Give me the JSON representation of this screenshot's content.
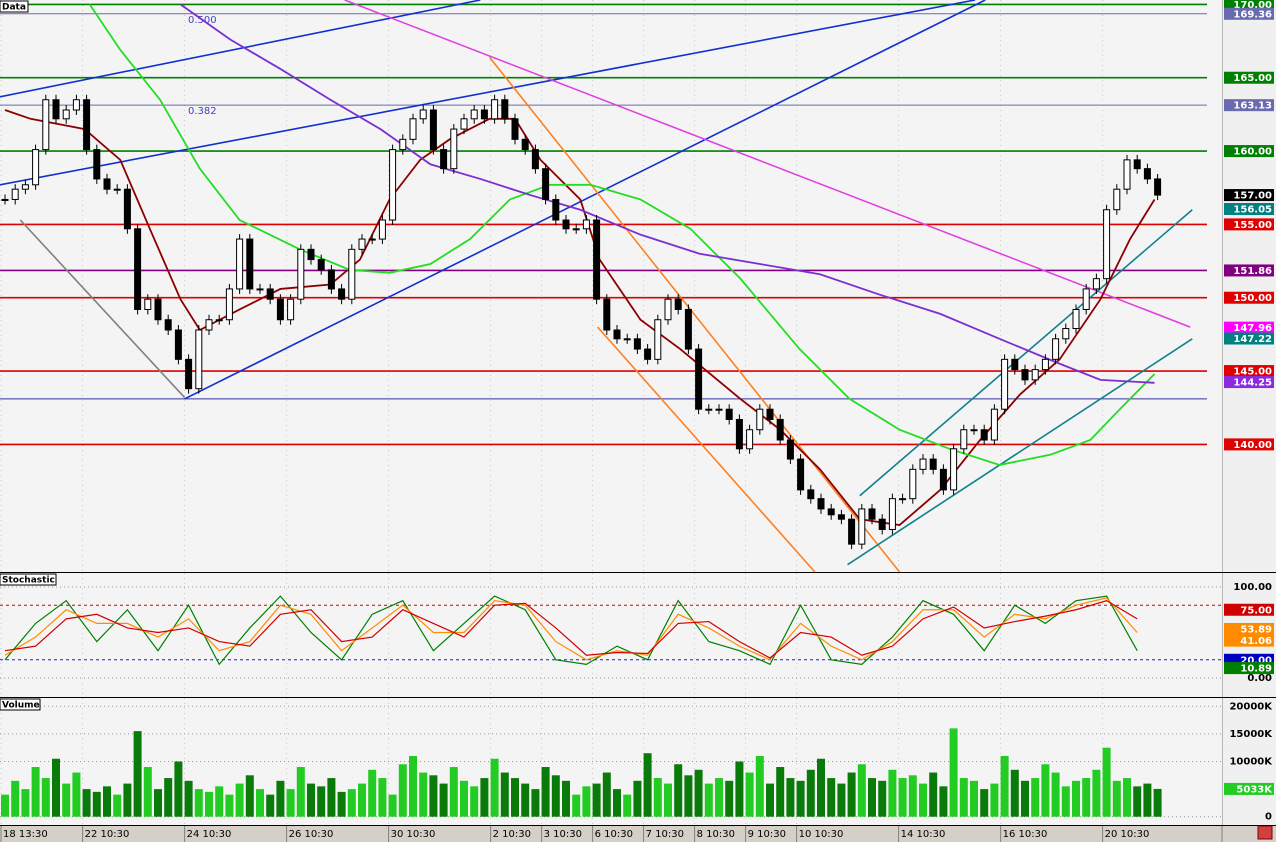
{
  "chart_data": [
    {
      "type": "candlestick",
      "title": "Data",
      "color": "#000000",
      "ylim": [
        131.3,
        170.3
      ],
      "values": [
        156.7,
        157.4,
        157.7,
        160.1,
        163.5,
        162.2,
        162.8,
        163.5,
        160.1,
        158.1,
        157.4,
        157.4,
        154.7,
        149.2,
        149.9,
        148.5,
        147.8,
        145.8,
        143.8,
        147.8,
        148.5,
        148.5,
        150.6,
        154.0,
        150.6,
        150.6,
        149.9,
        148.5,
        149.9,
        153.3,
        152.6,
        151.9,
        150.6,
        149.9,
        153.3,
        154.0,
        154.0,
        155.3,
        160.1,
        160.8,
        162.2,
        162.8,
        160.1,
        158.8,
        161.5,
        162.2,
        162.8,
        162.2,
        163.5,
        162.2,
        160.8,
        160.1,
        158.8,
        156.7,
        155.3,
        154.7,
        154.7,
        155.3,
        149.9,
        147.8,
        147.2,
        147.2,
        146.5,
        145.8,
        148.5,
        149.9,
        149.2,
        146.5,
        142.4,
        142.4,
        142.4,
        141.7,
        139.7,
        141.0,
        142.4,
        141.7,
        140.3,
        139.0,
        136.9,
        136.3,
        135.6,
        135.2,
        134.9,
        133.2,
        135.6,
        134.9,
        134.2,
        136.3,
        136.3,
        138.3,
        139.0,
        138.3,
        136.9,
        139.7,
        141.0,
        141.0,
        140.3,
        142.4,
        145.8,
        145.1,
        144.4,
        145.1,
        145.8,
        147.2,
        147.9,
        149.2,
        150.6,
        151.3,
        156.0,
        157.4,
        159.4,
        158.8,
        158.1,
        157.0
      ],
      "levels": [
        {
          "value": 170,
          "color": "#008000",
          "label": "170.00"
        },
        {
          "value": 169.36,
          "color": "#6a6ab0",
          "label": "169.36",
          "note": "0.500"
        },
        {
          "value": 165,
          "color": "#008000",
          "label": "165.00"
        },
        {
          "value": 163.13,
          "color": "#6a6ab0",
          "label": "163.13",
          "note": "0.382"
        },
        {
          "value": 160,
          "color": "#008000",
          "label": "160.00"
        },
        {
          "value": 155,
          "color": "#e00000",
          "label": "155.00"
        },
        {
          "value": 151.86,
          "color": "#800080",
          "label": "151.86"
        },
        {
          "value": 150,
          "color": "#e00000",
          "label": "150.00"
        },
        {
          "value": 145,
          "color": "#e00000",
          "label": "145.00"
        },
        {
          "value": 143.1,
          "color": "#3030a0"
        },
        {
          "value": 140,
          "color": "#e00000",
          "label": "140.00"
        }
      ],
      "markers": [
        {
          "value": 157,
          "label": "157.00",
          "color": "#000000"
        },
        {
          "value": 156.05,
          "label": "156.05",
          "color": "#008080"
        },
        {
          "value": 147.96,
          "label": "147.96",
          "color": "#ff00ff"
        },
        {
          "value": 147.22,
          "label": "147.22",
          "color": "#008080"
        },
        {
          "value": 144.25,
          "label": "144.25",
          "color": "#8a2be2"
        }
      ],
      "overlays": [
        {
          "color": "#8b0000",
          "x": [
            0,
            2.5,
            7.8,
            11.3,
            14.2,
            17.2,
            19.1,
            23.0,
            27.0,
            31.9,
            34.8,
            37.7,
            40.7,
            43.6,
            47.5,
            50.0,
            52.5,
            56.4,
            58.3,
            62.3,
            66.2,
            72.1,
            76.0,
            79.9,
            83.8,
            87.7,
            91.7,
            95.6,
            99.5,
            103.4,
            107.4,
            110.3,
            112.7
          ],
          "values": [
            162.8,
            162.2,
            161.5,
            159.4,
            154.7,
            149.9,
            147.8,
            149.2,
            150.6,
            150.9,
            152.6,
            156.7,
            159.4,
            160.8,
            162.2,
            162.2,
            159.4,
            156.7,
            152.6,
            148.5,
            146.5,
            143.1,
            141.0,
            138.3,
            134.9,
            134.5,
            136.9,
            140.3,
            143.4,
            145.8,
            149.9,
            154.0,
            156.7
          ]
        },
        {
          "color": "#22dd22",
          "x": [
            8.3,
            11.3,
            15.2,
            19.1,
            23.0,
            28.9,
            33.8,
            37.7,
            41.7,
            45.6,
            49.5,
            53.4,
            57.4,
            62.3,
            67.2,
            72.1,
            77.9,
            82.8,
            87.7,
            92.6,
            97.5,
            102.5,
            106.4,
            109.3,
            112.7
          ],
          "values": [
            170.0,
            166.9,
            163.5,
            158.8,
            155.3,
            153.3,
            151.9,
            151.7,
            152.3,
            154.0,
            156.7,
            157.7,
            157.7,
            156.7,
            154.7,
            151.3,
            146.5,
            143.1,
            141.0,
            139.7,
            138.6,
            139.3,
            140.3,
            142.4,
            144.8
          ]
        },
        {
          "color": "#7b2fd0",
          "x": [
            17.2,
            22.1,
            27.0,
            31.9,
            36.8,
            41.7,
            46.6,
            51.5,
            56.4,
            62.3,
            68.1,
            74.0,
            79.9,
            85.8,
            91.7,
            97.5,
            103.4,
            107.4,
            112.7
          ],
          "values": [
            170.0,
            167.6,
            165.6,
            163.5,
            161.5,
            159.1,
            158.1,
            157.0,
            156.0,
            154.3,
            153.0,
            152.3,
            151.6,
            150.2,
            148.9,
            147.2,
            145.5,
            144.4,
            144.2
          ]
        }
      ],
      "trendlines": [
        {
          "color": "#1030d0",
          "x": [
            -0.5,
            46.6
          ],
          "values": [
            163.7,
            170.3
          ]
        },
        {
          "color": "#1030d0",
          "x": [
            -0.5,
            95.1
          ],
          "values": [
            157.7,
            170.3
          ]
        },
        {
          "color": "#1030d0",
          "x": [
            17.6,
            96.1
          ],
          "values": [
            143.1,
            170.3
          ]
        },
        {
          "color": "#808080",
          "x": [
            1.5,
            17.6
          ],
          "values": [
            155.3,
            143.2
          ]
        },
        {
          "color": "#e040e0",
          "x": [
            33.3,
            116.2
          ],
          "values": [
            170.3,
            148.0
          ]
        },
        {
          "color": "#ff8020",
          "x": [
            47.5,
            87.7
          ],
          "values": [
            166.4,
            131.3
          ]
        },
        {
          "color": "#ff8020",
          "x": [
            58.1,
            79.4
          ],
          "values": [
            148.0,
            131.3
          ]
        },
        {
          "color": "#108090",
          "x": [
            83.8,
            116.4
          ],
          "values": [
            136.5,
            156.0
          ]
        },
        {
          "color": "#108090",
          "x": [
            82.6,
            116.4
          ],
          "values": [
            131.8,
            147.2
          ]
        }
      ]
    },
    {
      "type": "line",
      "title": "Stochastic",
      "ylim": [
        -20.9,
        115.4
      ],
      "x": [
        0,
        3,
        6,
        9,
        12,
        15,
        18,
        21,
        24,
        27,
        30,
        33,
        36,
        39,
        42,
        45,
        48,
        51,
        54,
        57,
        60,
        63,
        66,
        69,
        72,
        75,
        78,
        81,
        84,
        87,
        90,
        93,
        96,
        99,
        102,
        105,
        108,
        111
      ],
      "series": [
        {
          "color": "#008000",
          "values": [
            20,
            60,
            85,
            40,
            75,
            30,
            80,
            15,
            55,
            90,
            50,
            20,
            70,
            85,
            30,
            60,
            90,
            75,
            20,
            15,
            35,
            20,
            85,
            40,
            30,
            15,
            80,
            20,
            15,
            45,
            85,
            70,
            30,
            80,
            60,
            85,
            90,
            30
          ]
        },
        {
          "color": "#ff8c00",
          "values": [
            25,
            45,
            75,
            60,
            60,
            45,
            65,
            30,
            40,
            80,
            70,
            30,
            55,
            80,
            50,
            50,
            85,
            80,
            40,
            20,
            30,
            25,
            70,
            55,
            35,
            20,
            60,
            35,
            20,
            40,
            75,
            75,
            45,
            70,
            65,
            80,
            88,
            50
          ]
        },
        {
          "color": "#d00000",
          "values": [
            30,
            35,
            65,
            70,
            55,
            50,
            55,
            40,
            35,
            70,
            75,
            40,
            45,
            75,
            60,
            45,
            80,
            82,
            55,
            25,
            28,
            27,
            60,
            62,
            40,
            22,
            50,
            45,
            25,
            35,
            65,
            78,
            55,
            62,
            68,
            75,
            85,
            65
          ]
        }
      ],
      "yticks": [
        {
          "value": 100,
          "label": "100.00"
        },
        {
          "value": 0,
          "label": "0.00"
        }
      ],
      "levels": [
        {
          "value": 80,
          "color": "#d00000"
        },
        {
          "value": 20,
          "color": "#2020d0"
        }
      ],
      "markers": [
        {
          "value": 75,
          "label": "75.00",
          "color": "#d00000"
        },
        {
          "value": 53.89,
          "label": "53.89",
          "color": "#ff8c00"
        },
        {
          "value": 41.06,
          "label": "41.06",
          "color": "#ff8c00"
        },
        {
          "value": 20,
          "label": "20.00",
          "color": "#0000c0"
        },
        {
          "value": 10.89,
          "label": "10.89",
          "color": "#008000"
        }
      ]
    },
    {
      "type": "bar",
      "title": "Volume",
      "ylim": [
        -1500,
        21500
      ],
      "up_color": "#22cc22",
      "down_color": "#0a7a0a",
      "categories": [
        "18 13:30",
        null,
        null,
        null,
        null,
        null,
        null,
        null,
        "22 10:30",
        null,
        null,
        null,
        null,
        null,
        null,
        null,
        null,
        null,
        "24 10:30",
        null,
        null,
        null,
        null,
        null,
        null,
        null,
        null,
        null,
        "26 10:30",
        null,
        null,
        null,
        null,
        null,
        null,
        null,
        null,
        null,
        "30 10:30",
        null,
        null,
        null,
        null,
        null,
        null,
        null,
        null,
        null,
        "2 10:30",
        null,
        null,
        null,
        null,
        "3 10:30",
        null,
        null,
        null,
        null,
        "6 10:30",
        null,
        null,
        null,
        null,
        "7 10:30",
        null,
        null,
        null,
        null,
        "8 10:30",
        null,
        null,
        null,
        null,
        "9 10:30",
        null,
        null,
        null,
        null,
        "10 10:30",
        null,
        null,
        null,
        null,
        null,
        null,
        null,
        null,
        null,
        "14 10:30",
        null,
        null,
        null,
        null,
        null,
        null,
        null,
        null,
        null,
        "16 10:30",
        null,
        null,
        null,
        null,
        null,
        null,
        null,
        null,
        null,
        "20 10:30",
        null,
        null,
        null,
        null,
        null
      ],
      "values": [
        4000,
        6500,
        5000,
        9000,
        7000,
        10500,
        6000,
        8000,
        5000,
        4500,
        5500,
        4000,
        6000,
        15500,
        9000,
        5000,
        7000,
        10000,
        6500,
        5000,
        4500,
        5500,
        4000,
        6000,
        7500,
        5000,
        4000,
        6500,
        5000,
        9000,
        6000,
        5500,
        7000,
        4500,
        5000,
        6000,
        8500,
        7000,
        4000,
        9500,
        11000,
        8000,
        7500,
        6000,
        9000,
        6500,
        5500,
        7000,
        10500,
        8000,
        7000,
        6000,
        5000,
        9000,
        7500,
        6500,
        4000,
        5500,
        6000,
        8000,
        5000,
        4000,
        6500,
        11500,
        7000,
        6000,
        9500,
        7500,
        8500,
        6000,
        7000,
        6500,
        10000,
        8000,
        11000,
        6000,
        9000,
        7000,
        6500,
        8500,
        10500,
        7000,
        6000,
        8000,
        9500,
        7000,
        6500,
        8500,
        7000,
        7500,
        6000,
        8000,
        5500,
        16000,
        7000,
        6500,
        5000,
        6000,
        11000,
        8500,
        6500,
        7000,
        9500,
        8000,
        5500,
        6500,
        7000,
        8500,
        12500,
        6500,
        7000,
        5500,
        6000,
        5033
      ],
      "yticks": [
        {
          "value": 20000,
          "label": "20000K"
        },
        {
          "value": 15000,
          "label": "15000K"
        },
        {
          "value": 10000,
          "label": "10000K"
        },
        0
      ],
      "markers": [
        {
          "value": 5033,
          "label": "5033K",
          "color": "#22cc22"
        }
      ]
    }
  ]
}
